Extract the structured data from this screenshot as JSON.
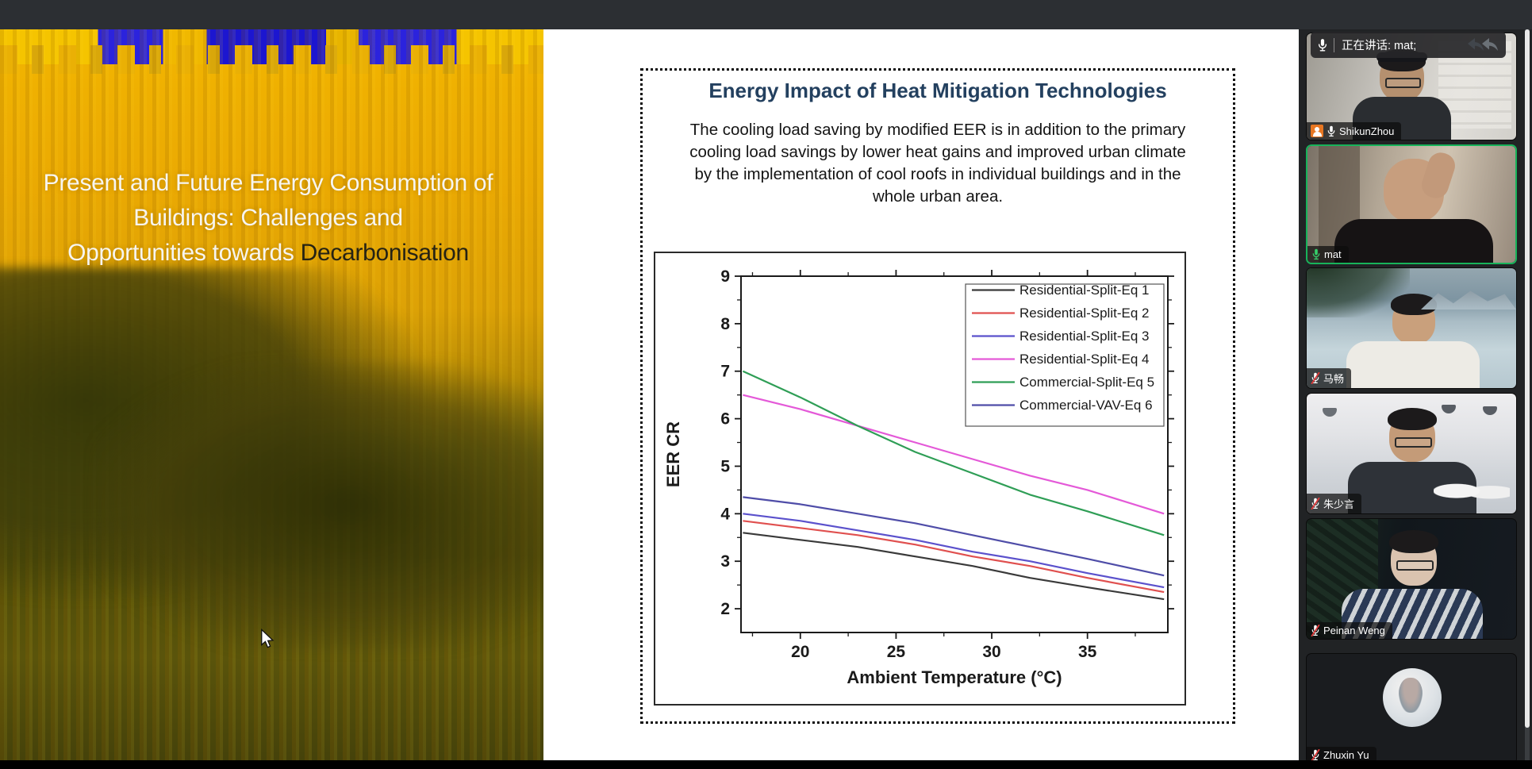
{
  "slide_left": {
    "title_line1": "Present and Future Energy Consumption of",
    "title_line2": "Buildings: Challenges and",
    "title_line3_normal": "Opportunities towards ",
    "title_line3_highlight": "Decarbonisation"
  },
  "slide_right": {
    "heading": "Energy Impact of Heat Mitigation Technologies",
    "paragraph": "The cooling load saving by modified EER is in addition to the primary cooling load savings by lower heat gains and improved urban climate by the implementation of cool roofs in individual buildings and in the whole urban area."
  },
  "chart_data": {
    "type": "line",
    "title": "",
    "xlabel": "Ambient Temperature (°C)",
    "ylabel": "EER CR",
    "xlim": [
      16.9,
      39.2
    ],
    "ylim": [
      1.5,
      9
    ],
    "x_ticks": [
      20,
      25,
      30,
      35
    ],
    "x_minor_ticks": [
      17.5,
      22.5,
      27.5,
      32.5,
      37.5
    ],
    "y_ticks": [
      2,
      3,
      4,
      5,
      6,
      7,
      8,
      9
    ],
    "grid": false,
    "legend_position": "top-right",
    "frame": "box-with-outward-ticks",
    "series": [
      {
        "name": "Residential-Split-Eq 1",
        "color": "#3a3a3a",
        "points": [
          [
            17,
            3.6
          ],
          [
            20,
            3.45
          ],
          [
            23,
            3.3
          ],
          [
            26,
            3.1
          ],
          [
            29,
            2.9
          ],
          [
            32,
            2.65
          ],
          [
            35,
            2.45
          ],
          [
            39,
            2.2
          ]
        ]
      },
      {
        "name": "Residential-Split-Eq 2",
        "color": "#e0504f",
        "points": [
          [
            17,
            3.85
          ],
          [
            20,
            3.7
          ],
          [
            23,
            3.55
          ],
          [
            26,
            3.35
          ],
          [
            29,
            3.1
          ],
          [
            32,
            2.9
          ],
          [
            35,
            2.65
          ],
          [
            39,
            2.35
          ]
        ]
      },
      {
        "name": "Residential-Split-Eq 3",
        "color": "#5b51cc",
        "points": [
          [
            17,
            4.0
          ],
          [
            20,
            3.85
          ],
          [
            23,
            3.65
          ],
          [
            26,
            3.45
          ],
          [
            29,
            3.2
          ],
          [
            32,
            3.0
          ],
          [
            35,
            2.75
          ],
          [
            39,
            2.45
          ]
        ]
      },
      {
        "name": "Residential-Split-Eq 4",
        "color": "#e459d8",
        "points": [
          [
            17,
            6.5
          ],
          [
            20,
            6.2
          ],
          [
            23,
            5.85
          ],
          [
            26,
            5.5
          ],
          [
            29,
            5.15
          ],
          [
            32,
            4.8
          ],
          [
            35,
            4.5
          ],
          [
            39,
            4.0
          ]
        ]
      },
      {
        "name": "Commercial-Split-Eq 5",
        "color": "#2f9e56",
        "points": [
          [
            17,
            7.0
          ],
          [
            20,
            6.45
          ],
          [
            23,
            5.85
          ],
          [
            26,
            5.3
          ],
          [
            29,
            4.85
          ],
          [
            32,
            4.4
          ],
          [
            35,
            4.05
          ],
          [
            39,
            3.55
          ]
        ]
      },
      {
        "name": "Commercial-VAV-Eq 6",
        "color": "#4f4da8",
        "points": [
          [
            17,
            4.35
          ],
          [
            20,
            4.2
          ],
          [
            23,
            4.0
          ],
          [
            26,
            3.8
          ],
          [
            29,
            3.55
          ],
          [
            32,
            3.3
          ],
          [
            35,
            3.05
          ],
          [
            39,
            2.7
          ]
        ]
      }
    ]
  },
  "meeting": {
    "speaking_banner": {
      "label": "正在讲话: mat;"
    },
    "participants": [
      {
        "name": "ShikunZhou",
        "mic": "on",
        "profile_badge": true,
        "active": false
      },
      {
        "name": "mat",
        "mic": "speaking",
        "profile_badge": false,
        "active": true
      },
      {
        "name": "马畅",
        "mic": "muted",
        "profile_badge": false,
        "active": false
      },
      {
        "name": "朱少言",
        "mic": "muted",
        "profile_badge": false,
        "active": false
      },
      {
        "name": "Peinan Weng",
        "mic": "muted",
        "profile_badge": false,
        "active": false
      },
      {
        "name": "Zhuxin Yu",
        "mic": "muted",
        "profile_badge": false,
        "active": false
      }
    ]
  },
  "icons": {
    "banner_mic": "microphone-icon",
    "banner_arrows": "reply-arrows-icon",
    "participant_mic": "microphone-icon",
    "muted_overlay": "red-slash",
    "profile_badge": "person-icon",
    "cursor": "arrow-cursor"
  },
  "colors": {
    "active_tile_border": "#17b35a",
    "slide_heading": "#23405f",
    "muted_slash": "#e03a3a",
    "topbar": "#2c2f33",
    "panel_bg": "#212325"
  }
}
